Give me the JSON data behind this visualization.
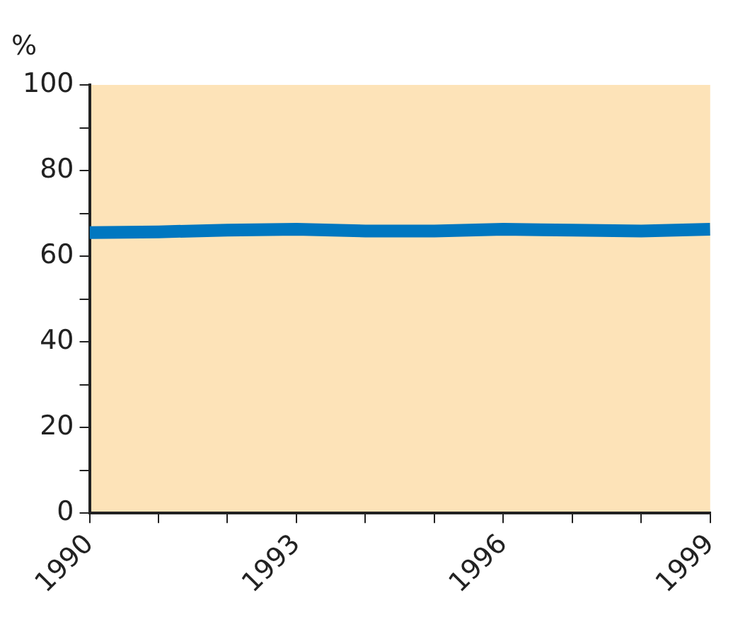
{
  "chart_data": {
    "type": "line",
    "ylabel": "%",
    "x": [
      1990,
      1991,
      1992,
      1993,
      1994,
      1995,
      1996,
      1997,
      1998,
      1999
    ],
    "series": [
      {
        "color": "#0077c0",
        "values": [
          65.5,
          65.7,
          66.1,
          66.3,
          65.9,
          65.9,
          66.3,
          66.1,
          65.9,
          66.3
        ]
      }
    ],
    "xlim": [
      1990,
      1999
    ],
    "xticks": [
      1990,
      {
        "value": 1991,
        "label": null
      },
      {
        "value": 1992,
        "label": null
      },
      1993,
      {
        "value": 1994,
        "label": null
      },
      {
        "value": 1995,
        "label": null
      },
      1996,
      {
        "value": 1997,
        "label": null
      },
      {
        "value": 1998,
        "label": null
      },
      1999
    ],
    "ylim": [
      0,
      100
    ],
    "yticks": [
      0,
      {
        "value": 10,
        "label": null
      },
      20,
      {
        "value": 30,
        "label": null
      },
      40,
      {
        "value": 50,
        "label": null
      },
      60,
      {
        "value": 70,
        "label": null
      },
      80,
      {
        "value": 90,
        "label": null
      },
      100
    ],
    "grid": false,
    "legend": false,
    "marker": "none",
    "line_style": "solid"
  }
}
